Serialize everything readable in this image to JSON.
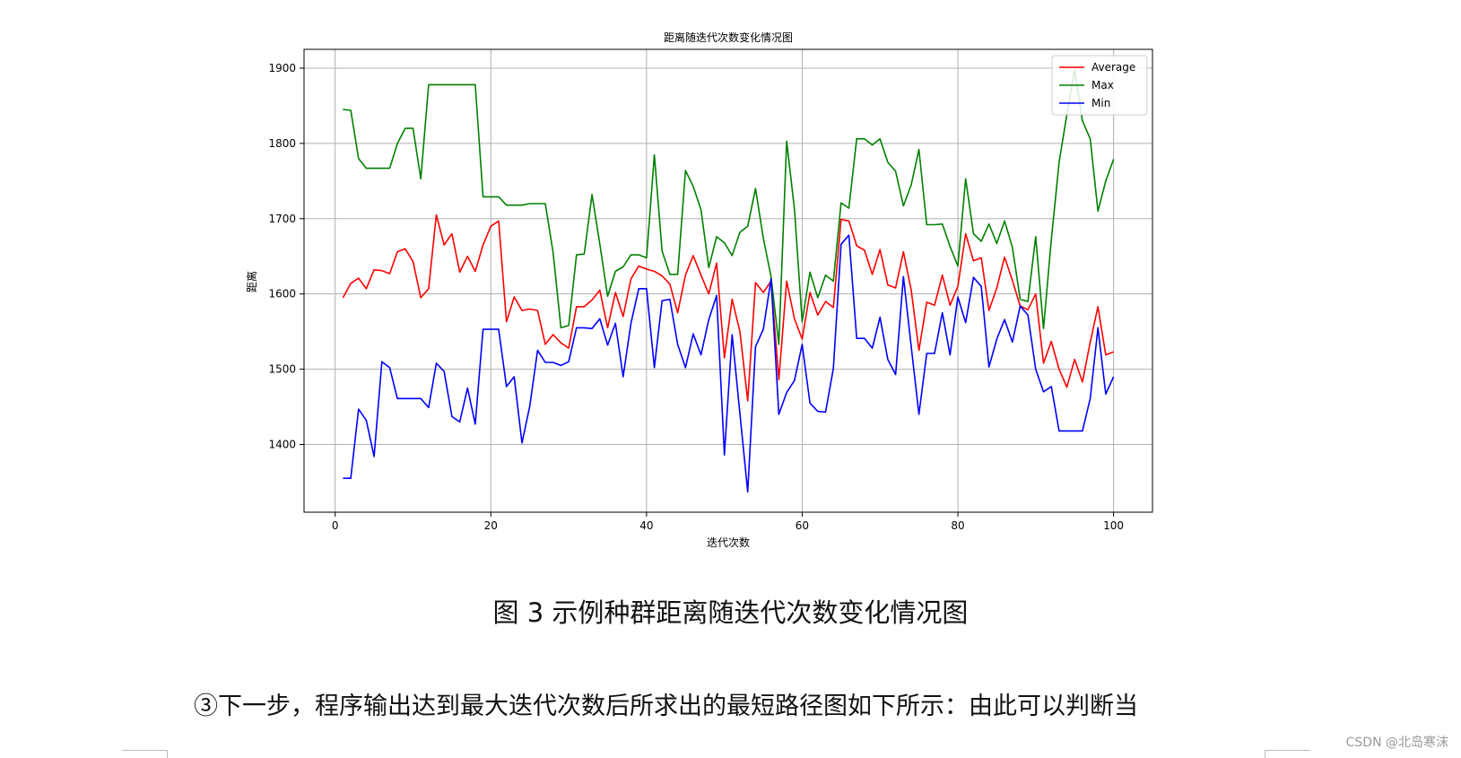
{
  "chart_data": {
    "type": "line",
    "title": "距离随迭代次数变化情况图",
    "xlabel": "迭代次数",
    "ylabel": "距离",
    "xlim": [
      -4,
      105
    ],
    "ylim": [
      1310,
      1925
    ],
    "xticks": [
      0,
      20,
      40,
      60,
      80,
      100
    ],
    "yticks": [
      1400,
      1500,
      1600,
      1700,
      1800,
      1900
    ],
    "grid": true,
    "legend_position": "top-right",
    "series": [
      {
        "name": "Average",
        "color": "#ff0000",
        "x": [
          1,
          2,
          3,
          4,
          5,
          6,
          7,
          8,
          9,
          10,
          11,
          12,
          13,
          14,
          15,
          16,
          17,
          18,
          19,
          20,
          21,
          22,
          23,
          24,
          25,
          26,
          27,
          28,
          29,
          30,
          31,
          32,
          33,
          34,
          35,
          36,
          37,
          38,
          39,
          40,
          41,
          42,
          43,
          44,
          45,
          46,
          47,
          48,
          49,
          50,
          51,
          52,
          53,
          54,
          55,
          56,
          57,
          58,
          59,
          60,
          61,
          62,
          63,
          64,
          65,
          66,
          67,
          68,
          69,
          70,
          71,
          72,
          73,
          74,
          75,
          76,
          77,
          78,
          79,
          80,
          81,
          82,
          83,
          84,
          85,
          86,
          87,
          88,
          89,
          90,
          91,
          92,
          93,
          94,
          95,
          96,
          97,
          98,
          99,
          100
        ],
        "values": [
          1595,
          1614,
          1621,
          1607,
          1632,
          1631,
          1627,
          1656,
          1660,
          1643,
          1595,
          1607,
          1705,
          1665,
          1680,
          1629,
          1650,
          1630,
          1665,
          1690,
          1697,
          1563,
          1596,
          1578,
          1580,
          1578,
          1533,
          1546,
          1535,
          1528,
          1583,
          1583,
          1592,
          1605,
          1555,
          1602,
          1570,
          1620,
          1637,
          1633,
          1630,
          1624,
          1613,
          1575,
          1625,
          1651,
          1625,
          1600,
          1641,
          1515,
          1593,
          1550,
          1458,
          1615,
          1602,
          1617,
          1486,
          1617,
          1567,
          1540,
          1602,
          1572,
          1590,
          1582,
          1699,
          1697,
          1664,
          1658,
          1626,
          1659,
          1612,
          1608,
          1656,
          1605,
          1525,
          1589,
          1585,
          1625,
          1585,
          1610,
          1680,
          1644,
          1648,
          1578,
          1608,
          1649,
          1618,
          1584,
          1579,
          1600,
          1508,
          1537,
          1500,
          1476,
          1513,
          1483,
          1536,
          1583,
          1519,
          1523
        ]
      },
      {
        "name": "Max",
        "color": "#008000",
        "x": [
          1,
          2,
          3,
          4,
          5,
          6,
          7,
          8,
          9,
          10,
          11,
          12,
          13,
          14,
          15,
          16,
          17,
          18,
          19,
          20,
          21,
          22,
          23,
          24,
          25,
          26,
          27,
          28,
          29,
          30,
          31,
          32,
          33,
          34,
          35,
          36,
          37,
          38,
          39,
          40,
          41,
          42,
          43,
          44,
          45,
          46,
          47,
          48,
          49,
          50,
          51,
          52,
          53,
          54,
          55,
          56,
          57,
          58,
          59,
          60,
          61,
          62,
          63,
          64,
          65,
          66,
          67,
          68,
          69,
          70,
          71,
          72,
          73,
          74,
          75,
          76,
          77,
          78,
          79,
          80,
          81,
          82,
          83,
          84,
          85,
          86,
          87,
          88,
          89,
          90,
          91,
          92,
          93,
          94,
          95,
          96,
          97,
          98,
          99,
          100
        ],
        "values": [
          1845,
          1844,
          1780,
          1767,
          1767,
          1767,
          1767,
          1800,
          1820,
          1820,
          1753,
          1878,
          1878,
          1878,
          1878,
          1878,
          1878,
          1878,
          1729,
          1729,
          1729,
          1718,
          1718,
          1718,
          1720,
          1720,
          1720,
          1655,
          1555,
          1558,
          1652,
          1653,
          1732,
          1666,
          1597,
          1630,
          1636,
          1652,
          1652,
          1648,
          1785,
          1657,
          1626,
          1626,
          1764,
          1743,
          1712,
          1635,
          1676,
          1668,
          1651,
          1682,
          1690,
          1740,
          1674,
          1623,
          1533,
          1803,
          1713,
          1563,
          1629,
          1595,
          1625,
          1617,
          1721,
          1714,
          1806,
          1806,
          1798,
          1806,
          1775,
          1763,
          1717,
          1745,
          1792,
          1692,
          1692,
          1693,
          1663,
          1637,
          1753,
          1680,
          1670,
          1693,
          1667,
          1697,
          1662,
          1593,
          1590,
          1676,
          1554,
          1672,
          1775,
          1838,
          1897,
          1830,
          1806,
          1710,
          1750,
          1779
        ]
      },
      {
        "name": "Min",
        "color": "#0000ff",
        "x": [
          1,
          2,
          3,
          4,
          5,
          6,
          7,
          8,
          9,
          10,
          11,
          12,
          13,
          14,
          15,
          16,
          17,
          18,
          19,
          20,
          21,
          22,
          23,
          24,
          25,
          26,
          27,
          28,
          29,
          30,
          31,
          32,
          33,
          34,
          35,
          36,
          37,
          38,
          39,
          40,
          41,
          42,
          43,
          44,
          45,
          46,
          47,
          48,
          49,
          50,
          51,
          52,
          53,
          54,
          55,
          56,
          57,
          58,
          59,
          60,
          61,
          62,
          63,
          64,
          65,
          66,
          67,
          68,
          69,
          70,
          71,
          72,
          73,
          74,
          75,
          76,
          77,
          78,
          79,
          80,
          81,
          82,
          83,
          84,
          85,
          86,
          87,
          88,
          89,
          90,
          91,
          92,
          93,
          94,
          95,
          96,
          97,
          98,
          99,
          100
        ],
        "values": [
          1355,
          1355,
          1447,
          1432,
          1384,
          1510,
          1502,
          1461,
          1461,
          1461,
          1461,
          1449,
          1508,
          1497,
          1437,
          1430,
          1475,
          1427,
          1553,
          1553,
          1553,
          1477,
          1490,
          1402,
          1451,
          1525,
          1509,
          1509,
          1505,
          1510,
          1555,
          1555,
          1554,
          1567,
          1532,
          1561,
          1490,
          1561,
          1607,
          1607,
          1502,
          1591,
          1593,
          1533,
          1502,
          1547,
          1519,
          1566,
          1598,
          1386,
          1546,
          1441,
          1337,
          1530,
          1553,
          1620,
          1440,
          1469,
          1485,
          1533,
          1455,
          1444,
          1443,
          1501,
          1666,
          1678,
          1541,
          1541,
          1528,
          1569,
          1513,
          1493,
          1623,
          1530,
          1440,
          1521,
          1521,
          1575,
          1519,
          1596,
          1562,
          1622,
          1610,
          1503,
          1540,
          1566,
          1536,
          1584,
          1572,
          1500,
          1470,
          1477,
          1418,
          1418,
          1418,
          1418,
          1461,
          1555,
          1467,
          1490
        ]
      }
    ]
  },
  "caption": "图 3  示例种群距离随迭代次数变化情况图",
  "paragraph": "③下一步，程序输出达到最大迭代次数后所求出的最短路径图如下所示：由此可以判断当",
  "watermark": "CSDN @北岛寒沫"
}
